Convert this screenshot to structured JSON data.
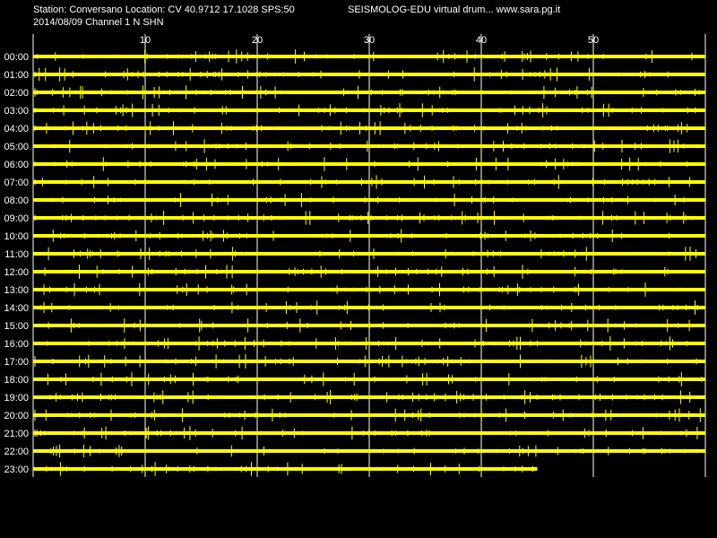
{
  "header": {
    "station_line": "Station: Conversano Location: CV 40.9712 17.1028 SPS:50",
    "site_line": "SEISMOLOG-EDU virtual drum... www.sara.pg.it",
    "date_line": "2014/08/09  Channel 1 N SHN"
  },
  "colors": {
    "background": "#000000",
    "trace": "#ffff00",
    "grid": "#ffffff",
    "text": "#ffffff"
  },
  "chart_data": {
    "type": "line",
    "title": "",
    "xlabel": "",
    "ylabel": "",
    "x_ticks": [
      "10",
      "20",
      "30",
      "40",
      "50"
    ],
    "x_tick_values": [
      10,
      20,
      30,
      40,
      50
    ],
    "xlim": [
      0,
      60
    ],
    "grid": "vertical",
    "rows": [
      {
        "label": "00:00",
        "end_minute": 60
      },
      {
        "label": "01:00",
        "end_minute": 60
      },
      {
        "label": "02:00",
        "end_minute": 60
      },
      {
        "label": "03:00",
        "end_minute": 60
      },
      {
        "label": "04:00",
        "end_minute": 60
      },
      {
        "label": "05:00",
        "end_minute": 60
      },
      {
        "label": "06:00",
        "end_minute": 60
      },
      {
        "label": "07:00",
        "end_minute": 60
      },
      {
        "label": "08:00",
        "end_minute": 60
      },
      {
        "label": "09:00",
        "end_minute": 60
      },
      {
        "label": "10:00",
        "end_minute": 60
      },
      {
        "label": "11:00",
        "end_minute": 60
      },
      {
        "label": "12:00",
        "end_minute": 60
      },
      {
        "label": "13:00",
        "end_minute": 60
      },
      {
        "label": "14:00",
        "end_minute": 60
      },
      {
        "label": "15:00",
        "end_minute": 60
      },
      {
        "label": "16:00",
        "end_minute": 60
      },
      {
        "label": "17:00",
        "end_minute": 60
      },
      {
        "label": "18:00",
        "end_minute": 60
      },
      {
        "label": "19:00",
        "end_minute": 60
      },
      {
        "label": "20:00",
        "end_minute": 60
      },
      {
        "label": "21:00",
        "end_minute": 60
      },
      {
        "label": "22:00",
        "end_minute": 60
      },
      {
        "label": "23:00",
        "end_minute": 45
      }
    ]
  }
}
